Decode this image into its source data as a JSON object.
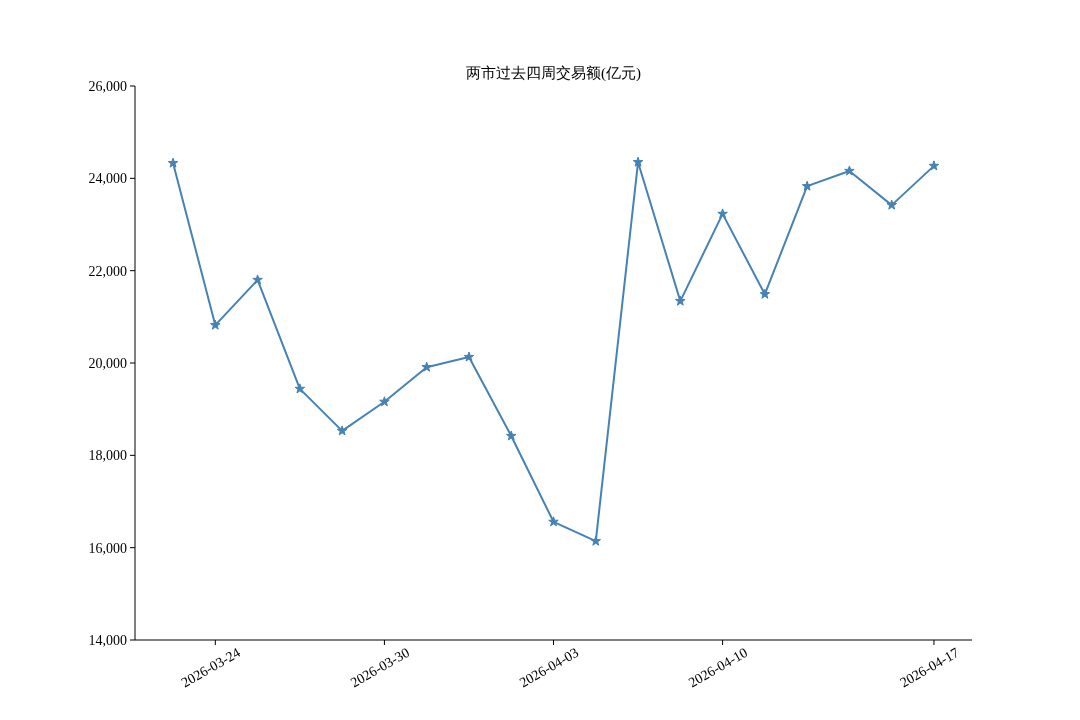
{
  "chart_data": {
    "type": "line",
    "title": "两市过去四周交易额(亿元)",
    "categories": [
      null,
      "2026-03-24",
      null,
      null,
      null,
      "2026-03-30",
      null,
      null,
      null,
      "2026-04-03",
      null,
      null,
      null,
      "2026-04-10",
      null,
      null,
      null,
      null,
      "2026-04-17"
    ],
    "series": [
      {
        "color": "#4682b4",
        "values": [
          24330,
          20820,
          21800,
          19440,
          18530,
          19160,
          19910,
          20130,
          18420,
          16560,
          16140,
          24350,
          21340,
          23230,
          21490,
          23830,
          24160,
          23420,
          24270
        ]
      }
    ],
    "ylim": [
      14000,
      26000
    ],
    "yticks": [
      {
        "value": 14000,
        "label": "14,000"
      },
      {
        "value": 16000,
        "label": "16,000"
      },
      {
        "value": 18000,
        "label": "18,000"
      },
      {
        "value": 20000,
        "label": "20,000"
      },
      {
        "value": 22000,
        "label": "22,000"
      },
      {
        "value": 24000,
        "label": "24,000"
      },
      {
        "value": 26000,
        "label": "26,000"
      }
    ],
    "marker": "star",
    "line_style": "solid",
    "grid": false
  }
}
